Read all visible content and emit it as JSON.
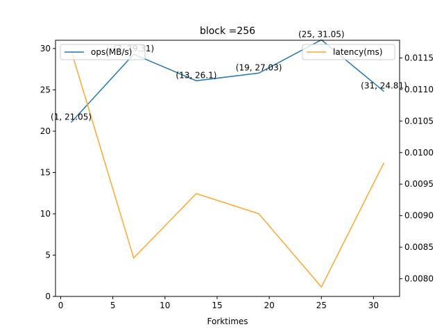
{
  "chart_data": {
    "type": "line",
    "title": "block =256",
    "xlabel": "Forktimes",
    "x": [
      1,
      7,
      13,
      19,
      25,
      31
    ],
    "xlim": [
      -0.5,
      32.5
    ],
    "xticks": [
      0,
      5,
      10,
      15,
      20,
      25,
      30
    ],
    "grid": false,
    "colors": {
      "ops": "#1f77b4",
      "latency": "#ffa62b"
    },
    "left_axis": {
      "ylim": [
        0,
        31
      ],
      "yticks": [
        0,
        5,
        10,
        15,
        20,
        25,
        30
      ],
      "series": [
        {
          "name": "ops(MB/s)",
          "values": [
            21.05,
            29.31,
            26.1,
            27.03,
            31.05,
            24.81
          ]
        }
      ],
      "legend_position": "upper left"
    },
    "right_axis": {
      "ylim": [
        0.00772,
        0.01178
      ],
      "yticks": [
        "0.0080",
        "0.0085",
        "0.0090",
        "0.0095",
        "0.0100",
        "0.0105",
        "0.0110",
        "0.0115"
      ],
      "series": [
        {
          "name": "latency(ms)",
          "values": [
            0.01162,
            0.00833,
            0.00935,
            0.00903,
            0.00787,
            0.00984
          ]
        }
      ],
      "legend_position": "upper right"
    },
    "annotations": [
      "(1, 21.05)",
      "(7, 29.31)",
      "(13, 26.1)",
      "(19, 27.03)",
      "(25, 31.05)",
      "(31, 24.81)"
    ]
  }
}
